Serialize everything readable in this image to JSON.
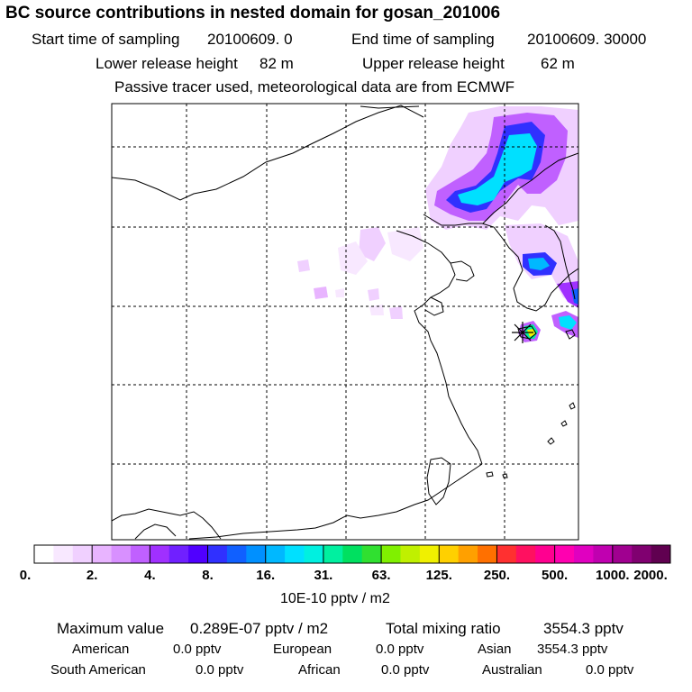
{
  "header": {
    "title": "BC  source contributions in nested domain for gosan_201006",
    "start_label": "Start time of sampling",
    "start_value": "20100609.     0",
    "end_label": "End time of sampling",
    "end_value": "20100609. 30000",
    "lower_label": "Lower release height",
    "lower_value": "82 m",
    "upper_label": "Upper release height",
    "upper_value": "62 m",
    "note": "Passive tracer used, meteorological data are from ECMWF"
  },
  "colorbar": {
    "colors": [
      "#ffffff",
      "#f8e8ff",
      "#f0d0ff",
      "#e8b4ff",
      "#d890ff",
      "#c060ff",
      "#a030ff",
      "#7020ff",
      "#5000ff",
      "#3030ff",
      "#1060ff",
      "#0090ff",
      "#00b8ff",
      "#00e0ff",
      "#00f0e0",
      "#00f0a0",
      "#00e060",
      "#30e030",
      "#80f000",
      "#c0f000",
      "#f0f000",
      "#ffd000",
      "#ffa000",
      "#ff7000",
      "#ff3030",
      "#ff1060",
      "#ff0090",
      "#ff00b0",
      "#e000c0",
      "#c000b0",
      "#a00090",
      "#800070",
      "#600050"
    ],
    "tick_labels": [
      "0.",
      "2.",
      "4.",
      "8.",
      "16.",
      "31.",
      "63.",
      "125.",
      "250.",
      "500.",
      "1000.",
      "2000."
    ],
    "unit": "10E-10 pptv / m2"
  },
  "stats": {
    "max_label": "Maximum value",
    "max_value": "0.289E-07 pptv / m2",
    "total_label": "Total mixing ratio",
    "total_value": "3554.3 pptv",
    "regions": [
      {
        "name": "American",
        "value": "0.0 pptv"
      },
      {
        "name": "European",
        "value": "0.0 pptv"
      },
      {
        "name": "Asian",
        "value": "3554.3 pptv"
      },
      {
        "name": "South American",
        "value": "0.0 pptv"
      },
      {
        "name": "African",
        "value": "0.0 pptv"
      },
      {
        "name": "Australian",
        "value": "0.0 pptv"
      }
    ]
  }
}
